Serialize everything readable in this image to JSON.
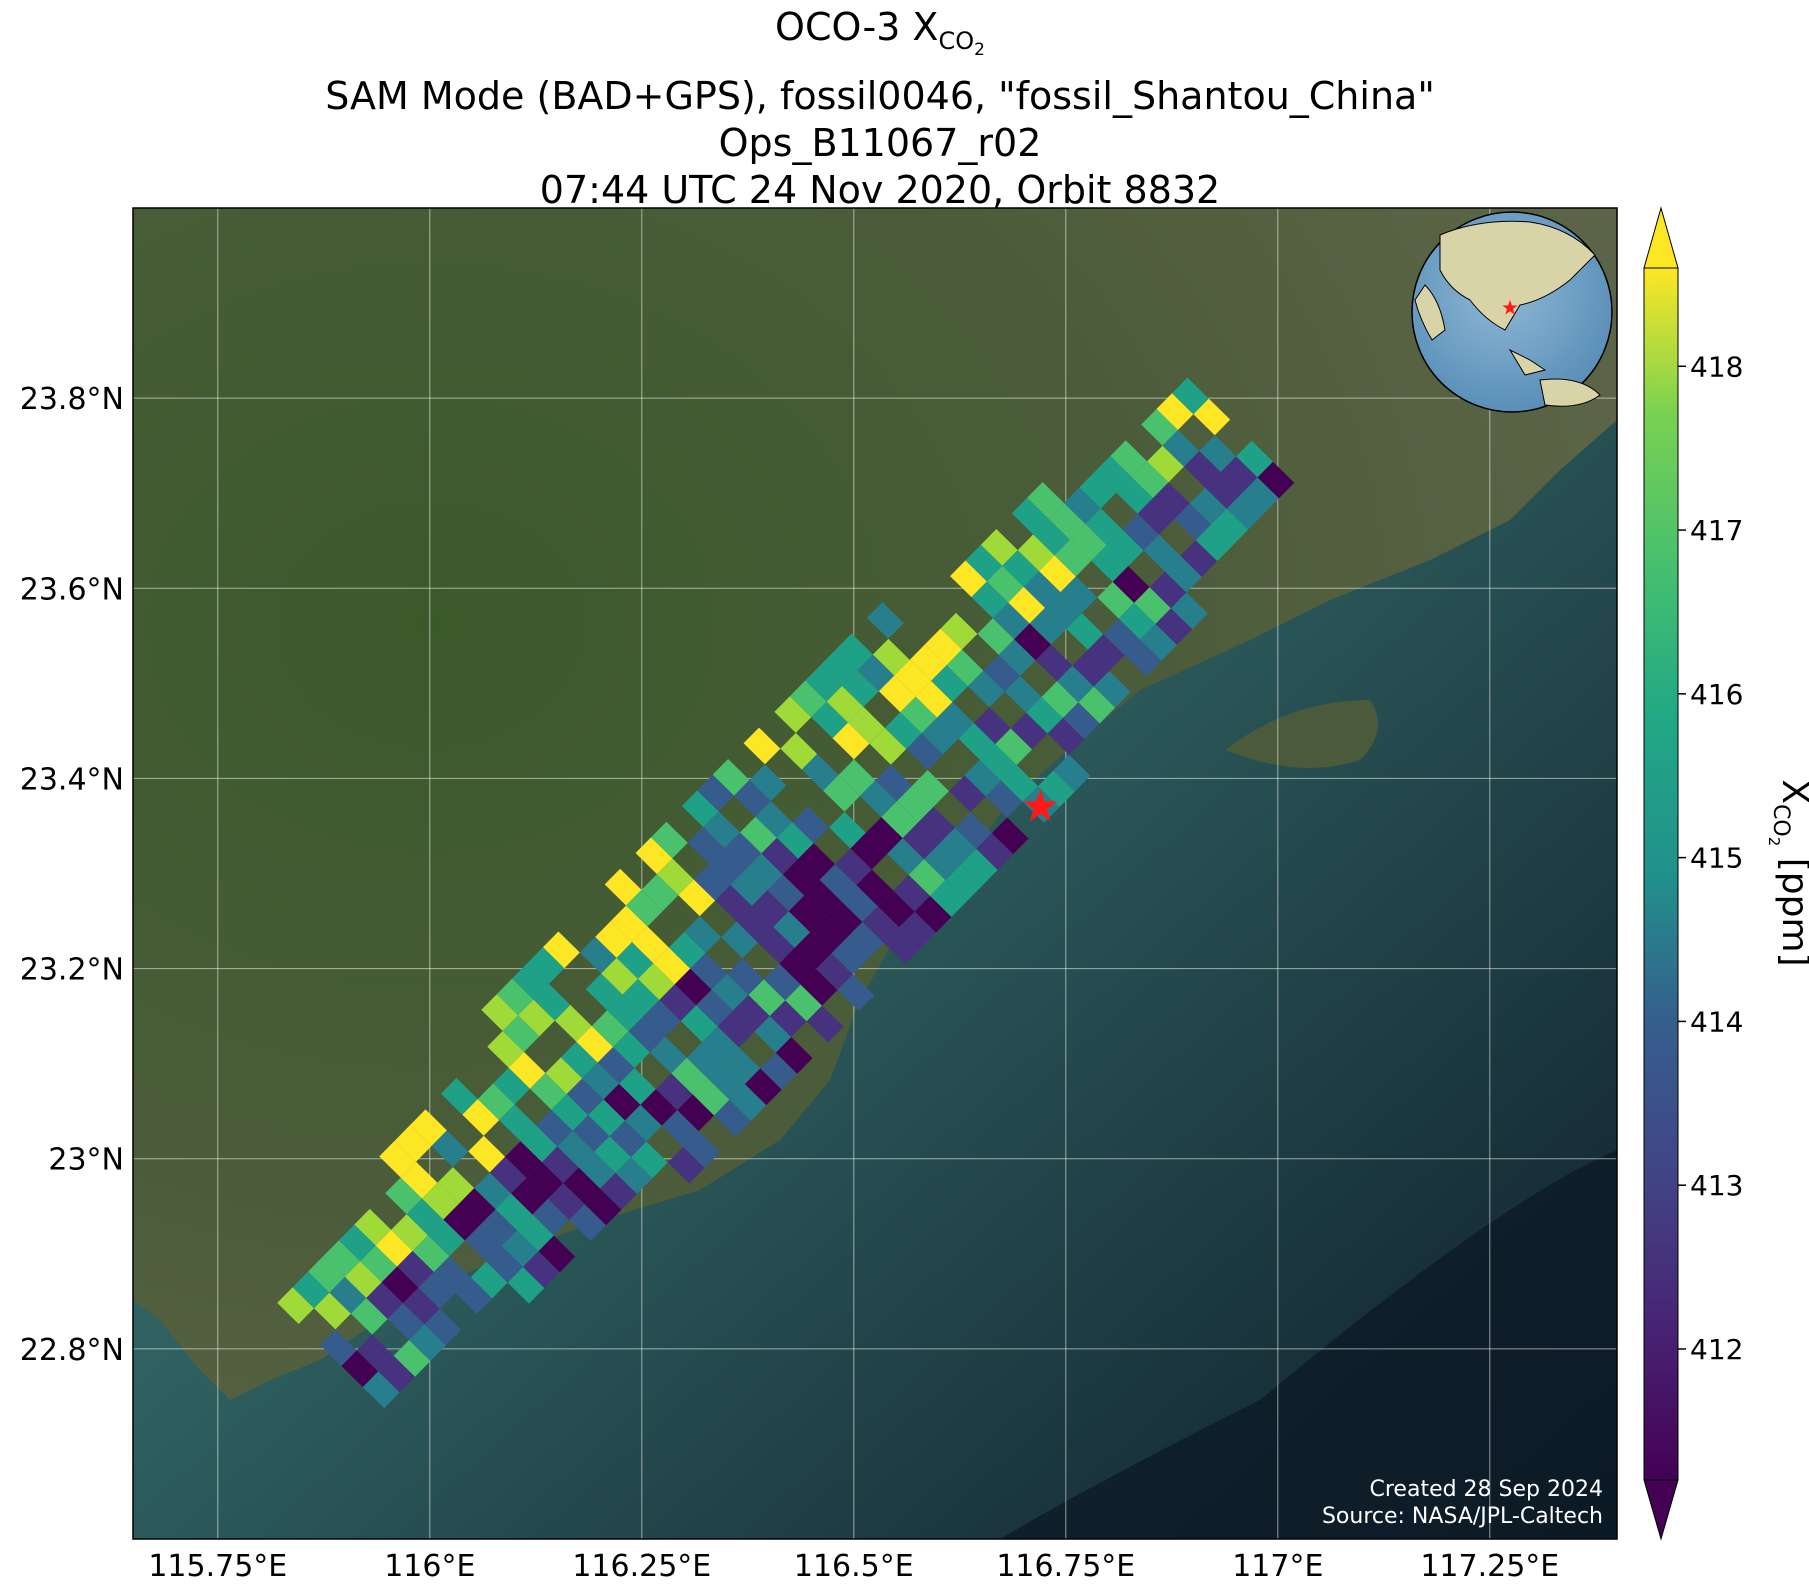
{
  "title": {
    "instrument": "OCO-3 X",
    "species_sub": "CO",
    "species_sub2": "2",
    "line2": "SAM Mode (BAD+GPS), fossil0046, \"fossil_Shantou_China\"",
    "line3": "Ops_B11067_r02",
    "line4": "07:44 UTC 24 Nov 2020, Orbit 8832"
  },
  "map": {
    "lon_range": [
      115.65,
      117.4
    ],
    "lat_range": [
      22.6,
      24.0
    ],
    "x_ticks": [
      {
        "lon": 115.75,
        "label": "115.75°E"
      },
      {
        "lon": 116.0,
        "label": "116°E"
      },
      {
        "lon": 116.25,
        "label": "116.25°E"
      },
      {
        "lon": 116.5,
        "label": "116.5°E"
      },
      {
        "lon": 116.75,
        "label": "116.75°E"
      },
      {
        "lon": 117.0,
        "label": "117°E"
      },
      {
        "lon": 117.25,
        "label": "117.25°E"
      }
    ],
    "y_ticks": [
      {
        "lat": 22.8,
        "label": "22.8°N"
      },
      {
        "lat": 23.0,
        "label": "23°N"
      },
      {
        "lat": 23.2,
        "label": "23.2°N"
      },
      {
        "lat": 23.4,
        "label": "23.4°N"
      },
      {
        "lat": 23.6,
        "label": "23.6°N"
      },
      {
        "lat": 23.8,
        "label": "23.8°N"
      }
    ],
    "target_marker": {
      "lon": 116.72,
      "lat": 23.37,
      "color": "#ff1a1a"
    },
    "credits": {
      "created": "Created 28 Sep 2024",
      "source": "Source: NASA/JPL-Caltech"
    }
  },
  "colorbar": {
    "label_main": "X",
    "label_sub": "CO",
    "label_sub2": "2",
    "label_unit": " [ppm]",
    "range": [
      411.2,
      418.6
    ],
    "ticks": [
      412,
      413,
      414,
      415,
      416,
      417,
      418
    ],
    "colormap": "viridis"
  },
  "colors": {
    "land_dark": "#2f4a24",
    "land_mid": "#4f5f3c",
    "sea_near": "#3e6b5c",
    "sea_far": "#10202c"
  }
}
